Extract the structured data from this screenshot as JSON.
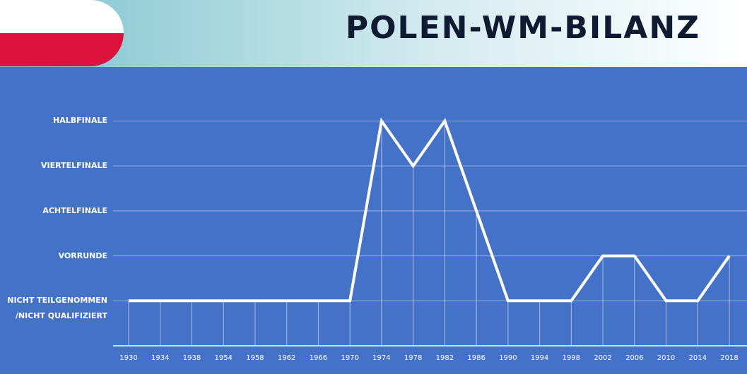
{
  "chart_data": {
    "type": "line",
    "title": "POLEN-WM-BILANZ",
    "categories": [
      "1930",
      "1934",
      "1938",
      "1954",
      "1958",
      "1962",
      "1966",
      "1970",
      "1974",
      "1978",
      "1982",
      "1986",
      "1990",
      "1994",
      "1998",
      "2002",
      "2006",
      "2010",
      "2014",
      "2018"
    ],
    "series": [
      {
        "name": "Polen",
        "color": "#ffffff",
        "values": [
          0,
          0,
          0,
          0,
          0,
          0,
          0,
          0,
          4,
          3,
          4,
          2,
          0,
          0,
          0,
          1,
          1,
          0,
          0,
          1
        ]
      }
    ],
    "ylim": [
      -1,
      5.2
    ],
    "yticks": [
      {
        "value": 0,
        "label": "NICHT TEILGENOMMEN\n/NICHT QUALIFIZIERT"
      },
      {
        "value": 1,
        "label": "VORRUNDE"
      },
      {
        "value": 2,
        "label": "ACHTELFINALE"
      },
      {
        "value": 3,
        "label": "VIERTELFINALE"
      },
      {
        "value": 4,
        "label": "HALBFINALE"
      }
    ],
    "grid": true
  }
}
